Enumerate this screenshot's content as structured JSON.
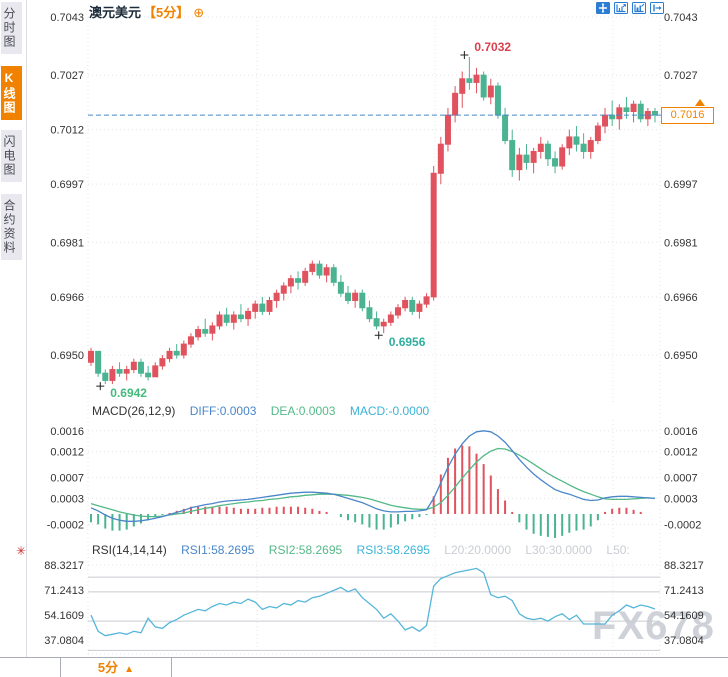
{
  "header": {
    "symbol": "澳元美元",
    "period": "【5分】",
    "add_indicator_icon": "⊕"
  },
  "sidebar": {
    "tabs": [
      {
        "label": "分时图",
        "active": false
      },
      {
        "label": "K线图",
        "active": true
      },
      {
        "label": "闪电图",
        "active": false
      },
      {
        "label": "合约资料",
        "active": false
      }
    ]
  },
  "toolbar": {
    "icons": [
      "crosshair-icon",
      "zoom-in-icon",
      "zoom-scale-icon",
      "exit-zoom-icon"
    ]
  },
  "price_axis": {
    "current_price": "0.7016"
  },
  "macd_header": {
    "name": "MACD(26,12,9)",
    "diff": "DIFF:0.0003",
    "dea": "DEA:0.0003",
    "macd": "MACD:-0.0000"
  },
  "rsi_header": {
    "name": "RSI(14,14,14)",
    "rsi1": "RSI1:58.2695",
    "rsi2": "RSI2:58.2695",
    "rsi3": "RSI3:58.2695",
    "l20": "L20:20.0000",
    "l30": "L30:30.0000",
    "l50": "L50:"
  },
  "bottom_bar": {
    "period": "5分",
    "arrow": "▲"
  },
  "watermark": "FX678",
  "colors": {
    "up": "#e0535e",
    "down": "#4ab391",
    "accent_orange": "#f08200",
    "diff_line": "#4a86c9",
    "dea_line": "#53b987",
    "macd_text": "#3bb3d8",
    "rsi_line": "#56b6d9",
    "high_label": "#d93f4c",
    "low_label": "#45b97c",
    "pullback_label": "#2fae9e",
    "axis_text": "#333333",
    "grid": "#e4e4ea",
    "level_line": "#c8cbd0"
  },
  "chart_data": [
    {
      "type": "candlestick",
      "title": "澳元美元 5分",
      "y_ticks": [
        0.7043,
        0.7027,
        0.7012,
        0.6997,
        0.6981,
        0.6966,
        0.695
      ],
      "y_ticks_right": [
        0.7043,
        0.7027,
        0.6997,
        0.6981,
        0.6966,
        0.695
      ],
      "current_price": 0.7016,
      "annotations": [
        {
          "text": "0.7032",
          "index": 53,
          "at": "high",
          "color_key": "high_label"
        },
        {
          "text": "0.6956",
          "index": 41,
          "at": "low",
          "color_key": "pullback_label"
        },
        {
          "text": "0.6942",
          "index": 2,
          "at": "low",
          "color_key": "low_label"
        }
      ],
      "ohlc": [
        [
          0.6948,
          0.6952,
          0.6947,
          0.6951
        ],
        [
          0.6951,
          0.6951,
          0.6944,
          0.6945
        ],
        [
          0.6945,
          0.6946,
          0.6942,
          0.6943
        ],
        [
          0.6943,
          0.6947,
          0.6942,
          0.6946
        ],
        [
          0.6946,
          0.6948,
          0.6944,
          0.6945
        ],
        [
          0.6945,
          0.6947,
          0.6943,
          0.6946
        ],
        [
          0.6946,
          0.6949,
          0.6945,
          0.6948
        ],
        [
          0.6948,
          0.6949,
          0.6944,
          0.6945
        ],
        [
          0.6945,
          0.6947,
          0.6943,
          0.6944
        ],
        [
          0.6944,
          0.6948,
          0.6944,
          0.6947
        ],
        [
          0.6947,
          0.695,
          0.6946,
          0.6949
        ],
        [
          0.6949,
          0.6952,
          0.6948,
          0.6951
        ],
        [
          0.6951,
          0.6953,
          0.6949,
          0.695
        ],
        [
          0.695,
          0.6954,
          0.6949,
          0.6953
        ],
        [
          0.6953,
          0.6956,
          0.6952,
          0.6955
        ],
        [
          0.6955,
          0.6958,
          0.6954,
          0.6957
        ],
        [
          0.6957,
          0.696,
          0.6955,
          0.6956
        ],
        [
          0.6956,
          0.6959,
          0.6954,
          0.6958
        ],
        [
          0.6958,
          0.6962,
          0.6957,
          0.6961
        ],
        [
          0.6961,
          0.6963,
          0.6958,
          0.6959
        ],
        [
          0.6959,
          0.6962,
          0.6957,
          0.6961
        ],
        [
          0.6961,
          0.6964,
          0.6959,
          0.696
        ],
        [
          0.696,
          0.6963,
          0.6958,
          0.6962
        ],
        [
          0.6962,
          0.6965,
          0.696,
          0.6964
        ],
        [
          0.6964,
          0.6966,
          0.6961,
          0.6962
        ],
        [
          0.6962,
          0.6966,
          0.6961,
          0.6965
        ],
        [
          0.6965,
          0.6968,
          0.6963,
          0.6967
        ],
        [
          0.6967,
          0.697,
          0.6965,
          0.6969
        ],
        [
          0.6969,
          0.6972,
          0.6967,
          0.6971
        ],
        [
          0.6971,
          0.6973,
          0.6968,
          0.697
        ],
        [
          0.697,
          0.6974,
          0.6969,
          0.6973
        ],
        [
          0.6973,
          0.6976,
          0.6972,
          0.6975
        ],
        [
          0.6975,
          0.6976,
          0.6971,
          0.6972
        ],
        [
          0.6972,
          0.6975,
          0.697,
          0.6974
        ],
        [
          0.6974,
          0.6975,
          0.6969,
          0.697
        ],
        [
          0.697,
          0.6972,
          0.6966,
          0.6967
        ],
        [
          0.6967,
          0.6969,
          0.6964,
          0.6965
        ],
        [
          0.6965,
          0.6968,
          0.6963,
          0.6967
        ],
        [
          0.6967,
          0.6968,
          0.6962,
          0.6963
        ],
        [
          0.6963,
          0.6965,
          0.6959,
          0.696
        ],
        [
          0.696,
          0.6962,
          0.6957,
          0.6958
        ],
        [
          0.6958,
          0.696,
          0.6956,
          0.6959
        ],
        [
          0.6959,
          0.6962,
          0.6958,
          0.6961
        ],
        [
          0.6961,
          0.6964,
          0.696,
          0.6963
        ],
        [
          0.6963,
          0.6966,
          0.6962,
          0.6965
        ],
        [
          0.6965,
          0.6966,
          0.6961,
          0.6962
        ],
        [
          0.6962,
          0.6965,
          0.696,
          0.6964
        ],
        [
          0.6964,
          0.6967,
          0.6963,
          0.6966
        ],
        [
          0.6966,
          0.7002,
          0.6965,
          0.7
        ],
        [
          0.7,
          0.701,
          0.6997,
          0.7008
        ],
        [
          0.7008,
          0.7018,
          0.7006,
          0.7016
        ],
        [
          0.7016,
          0.7024,
          0.7014,
          0.7022
        ],
        [
          0.7022,
          0.7028,
          0.7018,
          0.7026
        ],
        [
          0.7026,
          0.7032,
          0.7023,
          0.7025
        ],
        [
          0.7025,
          0.7029,
          0.7022,
          0.7027
        ],
        [
          0.7027,
          0.7028,
          0.702,
          0.7021
        ],
        [
          0.7021,
          0.7026,
          0.7019,
          0.7024
        ],
        [
          0.7024,
          0.7025,
          0.7015,
          0.7016
        ],
        [
          0.7016,
          0.7018,
          0.7008,
          0.7009
        ],
        [
          0.7009,
          0.7012,
          0.6999,
          0.7001
        ],
        [
          0.7001,
          0.7007,
          0.6998,
          0.7005
        ],
        [
          0.7005,
          0.7008,
          0.7001,
          0.7003
        ],
        [
          0.7003,
          0.7007,
          0.7,
          0.7006
        ],
        [
          0.7006,
          0.701,
          0.7004,
          0.7008
        ],
        [
          0.7008,
          0.7009,
          0.7002,
          0.7004
        ],
        [
          0.7004,
          0.7006,
          0.7,
          0.7002
        ],
        [
          0.7002,
          0.7008,
          0.7001,
          0.7007
        ],
        [
          0.7007,
          0.7012,
          0.7005,
          0.701
        ],
        [
          0.701,
          0.7013,
          0.7006,
          0.7008
        ],
        [
          0.7008,
          0.7011,
          0.7004,
          0.7006
        ],
        [
          0.7006,
          0.701,
          0.7004,
          0.7009
        ],
        [
          0.7009,
          0.7014,
          0.7008,
          0.7013
        ],
        [
          0.7013,
          0.7018,
          0.7011,
          0.7016
        ],
        [
          0.7016,
          0.702,
          0.7013,
          0.7015
        ],
        [
          0.7015,
          0.7019,
          0.7012,
          0.7018
        ],
        [
          0.7018,
          0.7021,
          0.7015,
          0.7017
        ],
        [
          0.7017,
          0.702,
          0.7014,
          0.7019
        ],
        [
          0.7019,
          0.702,
          0.7014,
          0.7015
        ],
        [
          0.7015,
          0.7018,
          0.7013,
          0.7017
        ],
        [
          0.7017,
          0.7018,
          0.7014,
          0.7016
        ]
      ]
    },
    {
      "type": "macd",
      "title": "MACD(26,12,9)",
      "y_ticks": [
        0.0016,
        0.0012,
        0.0007,
        0.0003,
        -0.0002
      ],
      "histogram_rule": "2*(DIFF-DEA)",
      "series": [
        {
          "name": "DIFF",
          "values": [
            0.00012,
            6e-05,
            -2e-05,
            -8e-05,
            -0.00012,
            -0.00014,
            -0.00014,
            -0.00013,
            -0.00011,
            -8e-05,
            -5e-05,
            -1e-05,
            3e-05,
            7e-05,
            0.00012,
            0.00015,
            0.00018,
            0.0002,
            0.00023,
            0.00025,
            0.00026,
            0.00027,
            0.00028,
            0.0003,
            0.00032,
            0.00034,
            0.00036,
            0.00038,
            0.0004,
            0.00041,
            0.00042,
            0.00042,
            0.00041,
            0.0004,
            0.00038,
            0.00034,
            0.0003,
            0.00026,
            0.00022,
            0.00016,
            0.0001,
            6e-05,
            4e-05,
            4e-05,
            5e-05,
            5e-05,
            6e-05,
            8e-05,
            0.0003,
            0.0006,
            0.0009,
            0.00115,
            0.00135,
            0.0015,
            0.00158,
            0.0016,
            0.00158,
            0.0015,
            0.00138,
            0.00122,
            0.00105,
            0.0009,
            0.00077,
            0.00066,
            0.00056,
            0.00047,
            0.00042,
            0.00038,
            0.00033,
            0.00028,
            0.00026,
            0.00027,
            0.00031,
            0.00033,
            0.00034,
            0.00034,
            0.00033,
            0.00032,
            0.00031,
            0.0003
          ]
        },
        {
          "name": "DEA",
          "values": [
            0.0002,
            0.00016,
            0.00012,
            8e-05,
            4e-05,
            1e-05,
            -2e-05,
            -4e-05,
            -5e-05,
            -5e-05,
            -4e-05,
            -2e-05,
            0.0,
            2e-05,
            5e-05,
            8e-05,
            0.00011,
            0.00013,
            0.00016,
            0.00018,
            0.0002,
            0.00022,
            0.00023,
            0.00025,
            0.00026,
            0.00028,
            0.00029,
            0.00031,
            0.00033,
            0.00034,
            0.00036,
            0.00037,
            0.00038,
            0.00038,
            0.00038,
            0.00037,
            0.00036,
            0.00034,
            0.00032,
            0.00029,
            0.00025,
            0.00021,
            0.00017,
            0.00014,
            0.00012,
            0.0001,
            9e-05,
            9e-05,
            0.00013,
            0.00022,
            0.00036,
            0.00052,
            0.00069,
            0.00085,
            0.001,
            0.00112,
            0.00121,
            0.00126,
            0.00125,
            0.0012,
            0.00113,
            0.00105,
            0.00096,
            0.00087,
            0.00078,
            0.0007,
            0.00063,
            0.00056,
            0.00049,
            0.00043,
            0.00038,
            0.00033,
            0.00029,
            0.00028,
            0.00028,
            0.00028,
            0.00029,
            0.0003,
            0.00031,
            0.0003
          ]
        }
      ]
    },
    {
      "type": "line",
      "title": "RSI(14,14,14)",
      "y_ticks": [
        88.3217,
        71.2413,
        54.1609,
        37.0804
      ],
      "levels": [
        80,
        70,
        50,
        30
      ],
      "final_value": 58.2695,
      "values": [
        54,
        43,
        40,
        41,
        42,
        41,
        43,
        42,
        52,
        46,
        45,
        49,
        51,
        54,
        56,
        58,
        57,
        60,
        62,
        61,
        63,
        62,
        65,
        63,
        58,
        60,
        59,
        62,
        61,
        64,
        63,
        66,
        67,
        69,
        71,
        73,
        70,
        72,
        66,
        62,
        58,
        52,
        55,
        50,
        44,
        46,
        43,
        47,
        74,
        79,
        81,
        83,
        84,
        85,
        86,
        83,
        68,
        66,
        67,
        64,
        55,
        52,
        51,
        52,
        50,
        53,
        55,
        51,
        54,
        48,
        48,
        48,
        48,
        54,
        57,
        61,
        59,
        61,
        60,
        58.2695
      ]
    }
  ]
}
